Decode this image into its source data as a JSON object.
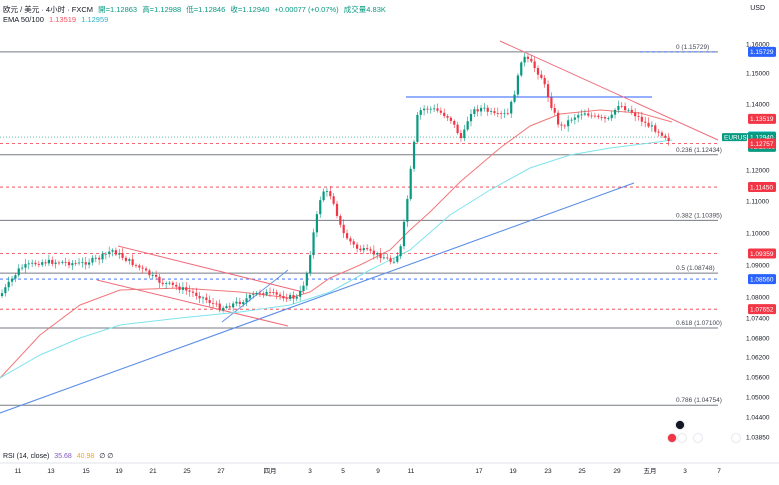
{
  "header": {
    "symbol": "欧元 / 美元 · 4小时 · FXCM",
    "open": "開=1.12863",
    "high": "高=1.12988",
    "low": "低=1.12846",
    "close": "收=1.12940",
    "change": "+0.00077 (+0.07%)",
    "volume": "成交量4.83K",
    "ema_label": "EMA 50/100",
    "ema50": "1.13519",
    "ema100": "1.12959",
    "currency": "USD"
  },
  "rsi": {
    "label": "RSI (14, close)",
    "value": "35.68",
    "value2": "40.98",
    "extra": "∅ ∅"
  },
  "chart_data": {
    "type": "candlestick",
    "y_ticks": [
      1.16,
      1.15,
      1.14,
      1.13,
      1.12,
      1.11,
      1.1,
      1.09,
      1.08,
      1.074,
      1.068,
      1.062,
      1.056,
      1.05,
      1.044,
      1.0385
    ],
    "y_tick_labels": [
      "1.16000",
      "1.15000",
      "1.14000",
      "1.13000",
      "1.12000",
      "1.11000",
      "1.10000",
      "1.09000",
      "1.08000",
      "1.07400",
      "1.06800",
      "1.06200",
      "1.05600",
      "1.05000",
      "1.04400",
      "1.03850"
    ],
    "x_ticks": [
      "11",
      "13",
      "15",
      "19",
      "21",
      "25",
      "27",
      "四月",
      "3",
      "5",
      "9",
      "11",
      "17",
      "19",
      "23",
      "25",
      "29",
      "五月",
      "3",
      "7"
    ],
    "fib_levels": [
      {
        "label": "0 (1.15729)",
        "price": 1.15729
      },
      {
        "label": "0.236 (1.12434)",
        "price": 1.12434
      },
      {
        "label": "0.382 (1.10395)",
        "price": 1.10395
      },
      {
        "label": "0.5 (1.08748)",
        "price": 1.08748
      },
      {
        "label": "0.618 (1.07100)",
        "price": 1.071
      },
      {
        "label": "0.786 (1.04754)",
        "price": 1.04754
      }
    ],
    "dashed_levels": [
      1.1145,
      1.09359,
      1.0856,
      1.07652
    ],
    "price_badges": [
      {
        "label": "1.15729",
        "price": 1.15729,
        "color": "#2962ff"
      },
      {
        "label": "1.13519",
        "price": 1.13519,
        "color": "#f23645"
      },
      {
        "label": "1.12959",
        "price": 1.12959,
        "color": "#26c6da"
      },
      {
        "label": "1.12940",
        "price": 1.1294,
        "color": "#089981"
      },
      {
        "label": "01:25:38",
        "price": 1.1266,
        "color": "#089981"
      },
      {
        "label": "1.12757",
        "price": 1.12757,
        "color": "#f23645"
      },
      {
        "label": "1.11450",
        "price": 1.1145,
        "color": "#f23645"
      },
      {
        "label": "1.09359",
        "price": 1.09359,
        "color": "#f23645"
      },
      {
        "label": "1.08560",
        "price": 1.0856,
        "color": "#2962ff"
      },
      {
        "label": "1.07652",
        "price": 1.07652,
        "color": "#f23645"
      }
    ],
    "symbol_tag": "EURUSD",
    "colors": {
      "up": "#089981",
      "down": "#f23645",
      "ema50": "#f2777a",
      "ema100": "#7fe3ec",
      "trend": "#5b8ee8",
      "channel": "#f06a7a"
    }
  }
}
